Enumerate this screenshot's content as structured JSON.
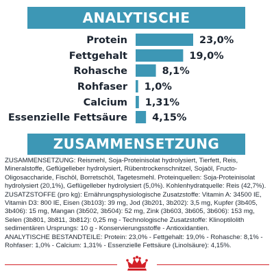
{
  "header1": "ANALYTISCHE BESTANDTEILE",
  "header2": "ZUSAMMENSETZUNG",
  "colors": {
    "accent": "#3d97b5",
    "bar": "#3d97b5",
    "text": "#1b2430",
    "brand_red": "#d31f26"
  },
  "chart_data": {
    "type": "bar",
    "orientation": "horizontal",
    "categories": [
      "Protein",
      "Fettgehalt",
      "Rohasche",
      "Rohfaser",
      "Calcium",
      "Essenzielle Fettsäure"
    ],
    "values": [
      23.0,
      19.0,
      8.1,
      1.0,
      1.31,
      4.15
    ],
    "value_labels": [
      "23,0%",
      "19,0%",
      "8,1%",
      "1,0%",
      "1,31%",
      "4,15%"
    ],
    "title": "ANALYTISCHE BESTANDTEILE",
    "xlabel": "",
    "ylabel": "",
    "xlim": [
      0,
      23.0
    ],
    "grid": false,
    "legend": "none"
  },
  "composition": {
    "p1": "ZUSAMMENSETZUNG: Reismehl, Soja-Proteinisolat hydrolysiert, Tierfett, Reis, Mineralstoffe, Geflügelleber hydrolysiert, Rübentrockenschnitzel, Sojaöl, Fructo-Oligosaccharide, Fischöl, Borretschöl, Tagetesmehl. Proteinquellen: Soja-Proteinisolat hydrolysiert (20,1%), Geflügelleber hydrolysiert (5,0%). Kohlenhydratquelle: Reis (42,7%).",
    "p2": "ZUSATZSTOFFE (pro kg): Ernährungsphysiologische Zusatzstoffe: Vitamin A: 34500 IE, Vitamin D3: 800 IE, Eisen (3b103): 39 mg, Jod (3b201, 3b202): 3,5 mg, Kupfer (3b405, 3b406): 15 mg, Mangan (3b502, 3b504): 52 mg, Zink (3b603, 3b605, 3b606): 153 mg, Selen (3b801, 3b811, 3b812): 0,25 mg - Technologische Zusatzstoffe: Klinoptilolith sedimentären Ursprungs: 10 g - Konservierungsstoffe - Antioxidantien.",
    "p3": "ANALYTISCHE BESTANDTEILE: Protein: 23,0% - Fettgehalt: 19,0% - Rohasche: 8,1% - Rohfaser: 1,0% - Calcium: 1,31% - Essenzielle Fettsäure (Linolsäure): 4,15%."
  },
  "logo": {
    "icon": "crown-icon"
  }
}
